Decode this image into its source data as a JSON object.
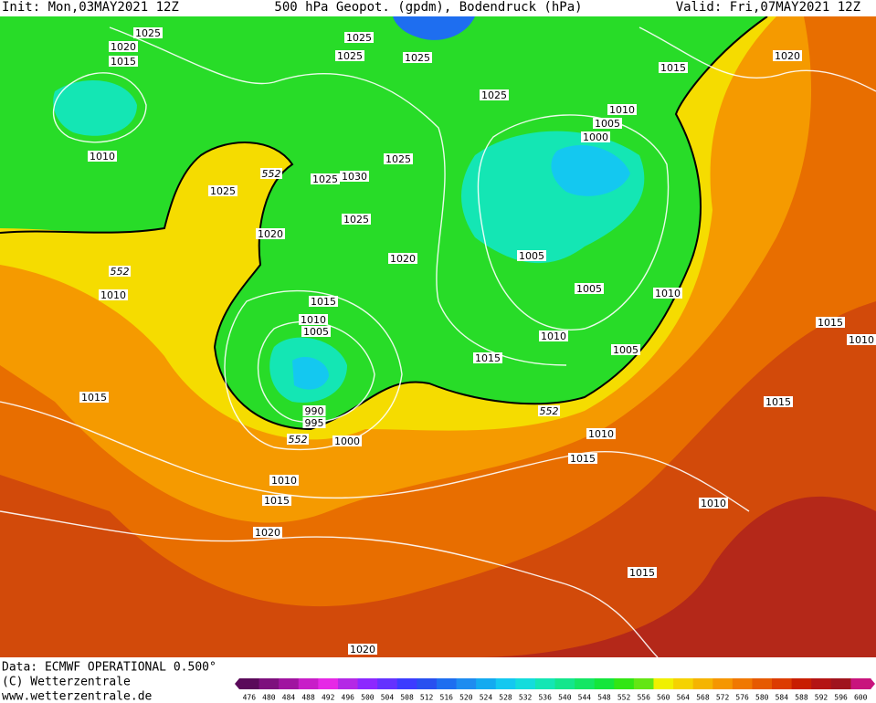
{
  "header": {
    "init": "Init: Mon,03MAY2021 12Z",
    "title": "500 hPa Geopot. (gpdm), Bodendruck (hPa)",
    "valid": "Valid: Fri,07MAY2021 12Z"
  },
  "isobar_labels": [
    "1025",
    "1020",
    "1015",
    "1025",
    "1025",
    "1025",
    "1015",
    "1020",
    "1025",
    "1010",
    "1010",
    "1005",
    "1000",
    "1025",
    "1025",
    "1030",
    "1025",
    "1025",
    "1020",
    "1020",
    "1005",
    "1010",
    "1005",
    "1010",
    "1015",
    "1010",
    "1005",
    "1010",
    "1005",
    "1015",
    "1015",
    "1010",
    "1015",
    "1015",
    "990",
    "995",
    "1000",
    "1010",
    "1015",
    "1010",
    "1015",
    "1010",
    "1020",
    "1015",
    "1020"
  ],
  "height_labels": [
    "552",
    "552",
    "552",
    "552"
  ],
  "footer": {
    "data": "Data: ECMWF OPERATIONAL 0.500°",
    "copyright": "(C) Wetterzentrale",
    "url": "www.wetterzentrale.de"
  },
  "colorbar": {
    "labels": [
      476,
      480,
      484,
      488,
      492,
      496,
      500,
      504,
      508,
      512,
      516,
      520,
      524,
      528,
      532,
      536,
      540,
      544,
      548,
      552,
      556,
      560,
      564,
      568,
      572,
      576,
      580,
      584,
      588,
      592,
      596,
      600
    ],
    "colors": [
      "#5a0a5a",
      "#7d107d",
      "#a014a0",
      "#c81ec8",
      "#e628e6",
      "#b428e6",
      "#8c28ff",
      "#6432ff",
      "#3c3cff",
      "#2850f0",
      "#1e6ef0",
      "#1e8cf0",
      "#14aaf0",
      "#14c8f0",
      "#14dcdc",
      "#14e6b4",
      "#14e68c",
      "#14e664",
      "#14e63c",
      "#32e614",
      "#64e614",
      "#f0f000",
      "#f5d200",
      "#f5b400",
      "#f59600",
      "#f07800",
      "#e65a00",
      "#dc3c00",
      "#c81e00",
      "#b41414",
      "#a0141e",
      "#c8147d"
    ]
  }
}
